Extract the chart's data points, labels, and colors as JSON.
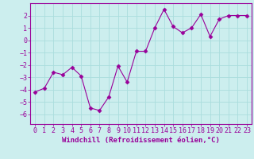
{
  "x": [
    0,
    1,
    2,
    3,
    4,
    5,
    6,
    7,
    8,
    9,
    10,
    11,
    12,
    13,
    14,
    15,
    16,
    17,
    18,
    19,
    20,
    21,
    22,
    23
  ],
  "y": [
    -4.2,
    -3.9,
    -2.6,
    -2.8,
    -2.2,
    -2.9,
    -5.5,
    -5.7,
    -4.6,
    -2.1,
    -3.4,
    -0.9,
    -0.9,
    1.0,
    2.5,
    1.1,
    0.6,
    1.0,
    2.1,
    0.3,
    1.7,
    2.0,
    2.0,
    2.0
  ],
  "line_color": "#990099",
  "marker": "D",
  "bg_color": "#cceeee",
  "grid_color": "#aadddd",
  "xlabel": "Windchill (Refroidissement éolien,°C)",
  "ylabel": "",
  "yticks": [
    -6,
    -5,
    -4,
    -3,
    -2,
    -1,
    0,
    1,
    2
  ],
  "xticks": [
    0,
    1,
    2,
    3,
    4,
    5,
    6,
    7,
    8,
    9,
    10,
    11,
    12,
    13,
    14,
    15,
    16,
    17,
    18,
    19,
    20,
    21,
    22,
    23
  ],
  "xlim": [
    -0.5,
    23.5
  ],
  "ylim": [
    -6.8,
    3.0
  ],
  "font_color": "#990099",
  "font_family": "monospace",
  "font_size_tick": 6,
  "font_size_label": 6.5
}
